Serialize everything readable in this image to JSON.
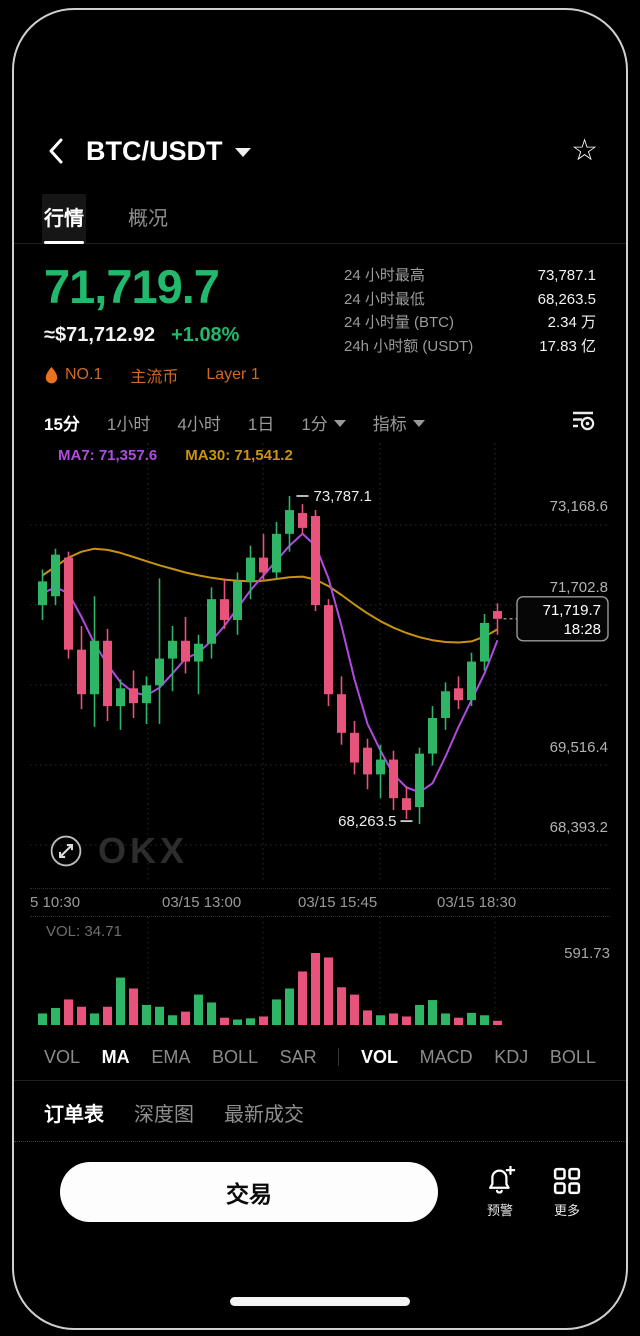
{
  "header": {
    "title": "BTC/USDT"
  },
  "tabs": [
    {
      "label": "行情"
    },
    {
      "label": "概况"
    }
  ],
  "price": {
    "last": "71,719.7",
    "fiat": "≈$71,712.92",
    "change": "+1.08%"
  },
  "badges": {
    "rank": "NO.1",
    "tag1": "主流币",
    "tag2": "Layer 1",
    "color": "#cf6a24"
  },
  "stats": [
    {
      "label": "24 小时最高",
      "value": "73,787.1"
    },
    {
      "label": "24 小时最低",
      "value": "68,263.5"
    },
    {
      "label": "24 小时量 (BTC)",
      "value": "2.34 万"
    },
    {
      "label": "24h 小时额 (USDT)",
      "value": "17.83 亿"
    }
  ],
  "timeframes": {
    "t15": "15分",
    "t1h": "1小时",
    "t4h": "4小时",
    "t1d": "1日",
    "t1m": "1分",
    "indicator": "指标"
  },
  "chart_data": {
    "type": "candlestick",
    "title": "BTC/USDT 15分钟K线",
    "interval": "15分",
    "up_color": "#2fb566",
    "down_color": "#e8537b",
    "x_ticks": [
      "5 10:30",
      "03/15 13:00",
      "03/15 15:45",
      "03/15 18:30"
    ],
    "y_ticks": [
      "73,168.6",
      "71,702.8",
      "69,516.4",
      "68,393.2"
    ],
    "candles_ohlc": [
      [
        71950,
        72550,
        71700,
        72350
      ],
      [
        72100,
        72900,
        71950,
        72800
      ],
      [
        72750,
        72850,
        71050,
        71200
      ],
      [
        71200,
        71600,
        70200,
        70450
      ],
      [
        70450,
        72100,
        69900,
        71350
      ],
      [
        71350,
        71550,
        70000,
        70250
      ],
      [
        70250,
        70700,
        69850,
        70550
      ],
      [
        70550,
        70850,
        70050,
        70300
      ],
      [
        70300,
        70750,
        69950,
        70600
      ],
      [
        70600,
        72400,
        69950,
        71050
      ],
      [
        71050,
        71600,
        70500,
        71350
      ],
      [
        71350,
        71750,
        70800,
        71000
      ],
      [
        71000,
        71450,
        70450,
        71300
      ],
      [
        71300,
        72250,
        71050,
        72050
      ],
      [
        72050,
        72400,
        71550,
        71700
      ],
      [
        71700,
        72500,
        71450,
        72350
      ],
      [
        72350,
        72950,
        72050,
        72750
      ],
      [
        72750,
        73150,
        72350,
        72500
      ],
      [
        72500,
        73350,
        72400,
        73150
      ],
      [
        73150,
        73787.1,
        72850,
        73550
      ],
      [
        73500,
        73650,
        73150,
        73250
      ],
      [
        73450,
        73550,
        71850,
        71950
      ],
      [
        71950,
        72050,
        70250,
        70450
      ],
      [
        70450,
        70750,
        69600,
        69800
      ],
      [
        69800,
        70000,
        69100,
        69300
      ],
      [
        69550,
        69700,
        68850,
        69100
      ],
      [
        69100,
        69600,
        68700,
        69350
      ],
      [
        69350,
        69500,
        68500,
        68700
      ],
      [
        68700,
        68900,
        68350,
        68500
      ],
      [
        68550,
        69550,
        68263.5,
        69450
      ],
      [
        69450,
        70250,
        69250,
        70050
      ],
      [
        70050,
        70650,
        69850,
        70500
      ],
      [
        70550,
        70750,
        70200,
        70350
      ],
      [
        70350,
        71150,
        70250,
        71000
      ],
      [
        71000,
        71800,
        70850,
        71650
      ],
      [
        71850,
        71980,
        71450,
        71719.7
      ]
    ],
    "volumes": [
      95,
      140,
      210,
      150,
      95,
      150,
      390,
      300,
      165,
      150,
      80,
      110,
      250,
      185,
      60,
      45,
      55,
      70,
      210,
      300,
      440,
      591.73,
      555,
      310,
      250,
      120,
      80,
      95,
      70,
      165,
      205,
      95,
      60,
      100,
      80,
      34.71
    ],
    "ma7": {
      "label": "MA7: 71,357.6",
      "color": "#b04be0",
      "values": [
        72150,
        72250,
        72150,
        71750,
        71300,
        70950,
        70650,
        70480,
        70430,
        70560,
        70800,
        71050,
        71150,
        71350,
        71600,
        71900,
        72200,
        72450,
        72700,
        72950,
        73150,
        72950,
        72400,
        71600,
        70700,
        69950,
        69500,
        69100,
        68880,
        68800,
        68950,
        69400,
        69900,
        70350,
        70800,
        71357.6
      ]
    },
    "ma30": {
      "label": "MA30: 71,541.2",
      "color": "#c9930f",
      "values": [
        72450,
        72600,
        72750,
        72850,
        72900,
        72880,
        72830,
        72760,
        72690,
        72620,
        72560,
        72500,
        72450,
        72410,
        72380,
        72360,
        72350,
        72360,
        72390,
        72420,
        72430,
        72380,
        72270,
        72120,
        71960,
        71810,
        71680,
        71570,
        71480,
        71410,
        71360,
        71330,
        71320,
        71340,
        71420,
        71541.2
      ]
    },
    "annotations": {
      "high_label": "73,787.1",
      "low_label": "68,263.5",
      "last_price": "71,719.7",
      "last_time": "18:28"
    },
    "volume_pane": {
      "current_label": "VOL: 34.71",
      "max_label": "591.73"
    }
  },
  "indicator_tabs": [
    "VOL",
    "MA",
    "EMA",
    "BOLL",
    "SAR",
    "VOL",
    "MACD",
    "KDJ",
    "BOLL"
  ],
  "bottom_tabs": [
    "订单表",
    "深度图",
    "最新成交"
  ],
  "footer": {
    "trade": "交易",
    "alert": "预警",
    "more": "更多"
  },
  "watermark": {
    "logo": "OKX"
  }
}
